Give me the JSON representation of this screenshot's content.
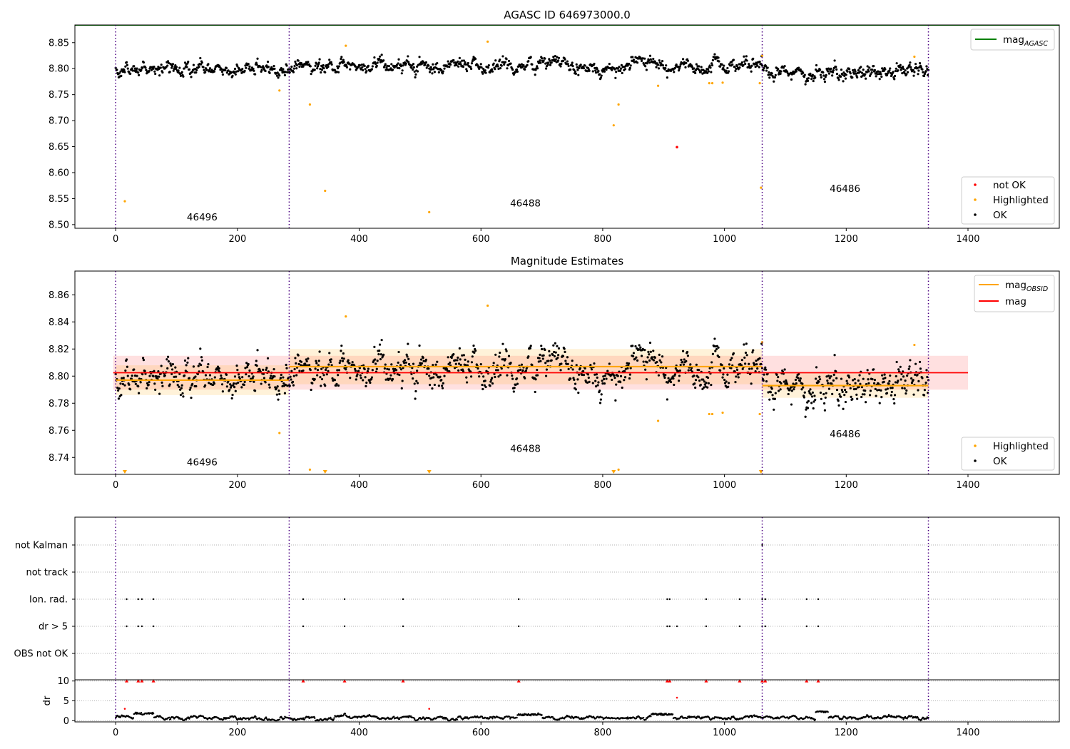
{
  "chart_data": [
    {
      "panel": "top",
      "type": "scatter",
      "title": "AGASC ID 646973000.0",
      "xlim": [
        -67,
        1550
      ],
      "ylim": [
        8.493,
        8.884
      ],
      "xticks": [
        0,
        200,
        400,
        600,
        800,
        1000,
        1200,
        1400
      ],
      "xtick_labels": [
        "0",
        "200",
        "400",
        "600",
        "800",
        "1000",
        "1200",
        "1400"
      ],
      "yticks": [
        8.5,
        8.55,
        8.6,
        8.65,
        8.7,
        8.75,
        8.8,
        8.85
      ],
      "ytick_labels": [
        "8.50",
        "8.55",
        "8.60",
        "8.65",
        "8.70",
        "8.75",
        "8.80",
        "8.85"
      ],
      "obsid_boundaries": [
        0,
        285,
        1062,
        1335
      ],
      "obsid_labels": [
        {
          "text": "46496",
          "x": 142,
          "y": 8.508
        },
        {
          "text": "46488",
          "x": 673,
          "y": 8.535
        },
        {
          "text": "46486",
          "x": 1198,
          "y": 8.563
        }
      ],
      "mag_agasc": 8.884,
      "mag_agasc_xrange": [
        -67,
        1550
      ],
      "ok_segments": [
        {
          "x0": 0,
          "x1": 285,
          "mean": 8.799,
          "sigma": 0.011
        },
        {
          "x0": 285,
          "x1": 1062,
          "mean": 8.807,
          "sigma": 0.011
        },
        {
          "x0": 1062,
          "x1": 1335,
          "mean": 8.793,
          "sigma": 0.009
        }
      ],
      "highlighted": [
        {
          "x": 15,
          "y": 8.545
        },
        {
          "x": 269,
          "y": 8.758
        },
        {
          "x": 319,
          "y": 8.731
        },
        {
          "x": 344,
          "y": 8.565
        },
        {
          "x": 378,
          "y": 8.844
        },
        {
          "x": 515,
          "y": 8.524
        },
        {
          "x": 611,
          "y": 8.852
        },
        {
          "x": 818,
          "y": 8.691
        },
        {
          "x": 826,
          "y": 8.731
        },
        {
          "x": 891,
          "y": 8.767
        },
        {
          "x": 975,
          "y": 8.772
        },
        {
          "x": 980,
          "y": 8.772
        },
        {
          "x": 997,
          "y": 8.773
        },
        {
          "x": 1058,
          "y": 8.772
        },
        {
          "x": 1060,
          "y": 8.571
        },
        {
          "x": 1062,
          "y": 8.825
        },
        {
          "x": 1312,
          "y": 8.823
        }
      ],
      "not_ok": [
        {
          "x": 922,
          "y": 8.649
        }
      ],
      "legends": [
        {
          "position": "upper-right",
          "entries": [
            {
              "label": "mag",
              "subscript": "AGASC",
              "color": "#008000",
              "marker": "line"
            }
          ]
        },
        {
          "position": "lower-right",
          "entries": [
            {
              "label": "not OK",
              "color": "#ff0000",
              "marker": "dot"
            },
            {
              "label": "Highlighted",
              "color": "#ffa500",
              "marker": "dot"
            },
            {
              "label": "OK",
              "color": "#000000",
              "marker": "dot"
            }
          ]
        }
      ]
    },
    {
      "panel": "middle",
      "type": "scatter",
      "title": "Magnitude Estimates",
      "xlim": [
        -67,
        1550
      ],
      "ylim": [
        8.7275,
        8.8775
      ],
      "xticks": [
        0,
        200,
        400,
        600,
        800,
        1000,
        1200,
        1400
      ],
      "xtick_labels": [
        "0",
        "200",
        "400",
        "600",
        "800",
        "1000",
        "1200",
        "1400"
      ],
      "yticks": [
        8.74,
        8.76,
        8.78,
        8.8,
        8.82,
        8.84,
        8.86
      ],
      "ytick_labels": [
        "8.74",
        "8.76",
        "8.78",
        "8.80",
        "8.82",
        "8.84",
        "8.86"
      ],
      "obsid_boundaries": [
        0,
        285,
        1062,
        1335
      ],
      "obsid_labels": [
        {
          "text": "46496",
          "x": 142,
          "y": 8.734
        },
        {
          "text": "46488",
          "x": 673,
          "y": 8.744
        },
        {
          "text": "46486",
          "x": 1198,
          "y": 8.755
        }
      ],
      "mag": 8.8025,
      "mag_band": [
        8.79,
        8.815
      ],
      "mag_xrange": [
        -4,
        1400
      ],
      "mag_obsid": [
        {
          "x0": 0,
          "x1": 285,
          "mean": 8.797,
          "band": [
            8.786,
            8.808
          ]
        },
        {
          "x0": 285,
          "x1": 1062,
          "mean": 8.807,
          "band": [
            8.794,
            8.82
          ]
        },
        {
          "x0": 1062,
          "x1": 1335,
          "mean": 8.793,
          "band": [
            8.784,
            8.802
          ]
        }
      ],
      "highlighted": [
        {
          "x": 269,
          "y": 8.758
        },
        {
          "x": 319,
          "y": 8.731
        },
        {
          "x": 378,
          "y": 8.844
        },
        {
          "x": 611,
          "y": 8.852
        },
        {
          "x": 826,
          "y": 8.731
        },
        {
          "x": 891,
          "y": 8.767
        },
        {
          "x": 975,
          "y": 8.772
        },
        {
          "x": 980,
          "y": 8.772
        },
        {
          "x": 997,
          "y": 8.773
        },
        {
          "x": 1058,
          "y": 8.772
        },
        {
          "x": 1062,
          "y": 8.825
        },
        {
          "x": 1312,
          "y": 8.823
        }
      ],
      "below_range_markers": [
        15,
        344,
        515,
        818,
        1060
      ],
      "legends": [
        {
          "position": "upper-right",
          "entries": [
            {
              "label": "mag",
              "subscript": "OBSID",
              "color": "#ffa500",
              "marker": "line"
            },
            {
              "label": "mag",
              "subscript": "",
              "color": "#ff0000",
              "marker": "line"
            }
          ]
        },
        {
          "position": "lower-right",
          "entries": [
            {
              "label": "Highlighted",
              "color": "#ffa500",
              "marker": "dot"
            },
            {
              "label": "OK",
              "color": "#000000",
              "marker": "dot"
            }
          ]
        }
      ]
    },
    {
      "panel": "flags",
      "type": "scatter",
      "xlim": [
        -67,
        1550
      ],
      "categories": [
        "not Kalman",
        "not track",
        "Ion. rad.",
        "dr > 5",
        "OBS not OK"
      ],
      "obsid_boundaries": [
        0,
        285,
        1062,
        1335
      ],
      "flag_points": {
        "not Kalman": [
          1062
        ],
        "not track": [],
        "Ion. rad.": [
          18,
          37,
          43,
          62,
          308,
          376,
          472,
          662,
          906,
          910,
          970,
          1025,
          1062,
          1067,
          1135,
          1154
        ],
        "dr > 5": [
          18,
          37,
          43,
          62,
          308,
          376,
          472,
          662,
          906,
          910,
          922,
          970,
          1025,
          1062,
          1067,
          1135,
          1154
        ],
        "OBS not OK": []
      }
    },
    {
      "panel": "dr",
      "type": "scatter",
      "ylabel": "dr",
      "xlim": [
        -67,
        1550
      ],
      "ylim": [
        -0.3,
        10.3
      ],
      "xticks": [
        0,
        200,
        400,
        600,
        800,
        1000,
        1200,
        1400
      ],
      "xtick_labels": [
        "0",
        "200",
        "400",
        "600",
        "800",
        "1000",
        "1200",
        "1400"
      ],
      "yticks": [
        0,
        5,
        10
      ],
      "ytick_labels": [
        "0",
        "5",
        "10"
      ],
      "obsid_boundaries": [
        0,
        285,
        1062,
        1335
      ],
      "clipped_markers": [
        18,
        37,
        43,
        62,
        308,
        376,
        472,
        662,
        906,
        910,
        970,
        1025,
        1062,
        1067,
        1135,
        1154
      ],
      "red_points": [
        {
          "x": 15,
          "y": 3.0
        },
        {
          "x": 515,
          "y": 3.0
        },
        {
          "x": 922,
          "y": 5.8
        }
      ],
      "bumps": [
        {
          "x0": 30,
          "x1": 62,
          "level": 1.8
        },
        {
          "x0": 1150,
          "x1": 1170,
          "level": 2.3
        },
        {
          "x0": 660,
          "x1": 700,
          "level": 1.5
        },
        {
          "x0": 880,
          "x1": 915,
          "level": 1.6
        }
      ]
    }
  ]
}
